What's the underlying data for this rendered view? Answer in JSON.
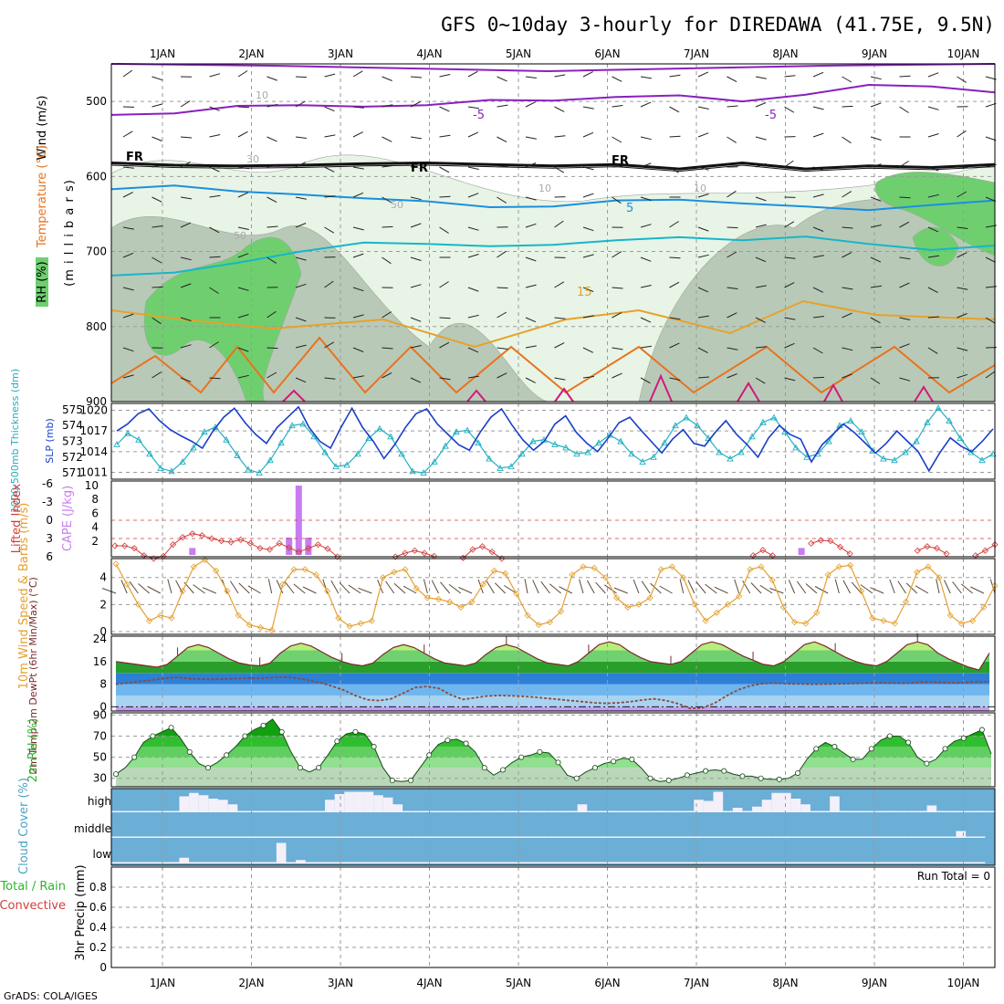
{
  "title": "GFS 0~10day 3-hourly for DIREDAWA (41.75E, 9.5N)",
  "footer": "GrADS: COLA/IGES",
  "day_labels": [
    "1JAN",
    "2JAN",
    "3JAN",
    "4JAN",
    "5JAN",
    "6JAN",
    "7JAN",
    "8JAN",
    "9JAN",
    "10JAN"
  ],
  "colors": {
    "rh_light": "#e8f4e6",
    "rh_mid": "#b9c9b8",
    "rh_dark": "#6fcf6f",
    "temp_purple": "#8a1fbf",
    "temp_blue": "#1a8fe0",
    "temp_cyan": "#16b6c8",
    "temp_orange": "#e6a22a",
    "temp_dorange": "#e8731c",
    "temp_magenta": "#d11a7a",
    "thickness": "#22b0c0",
    "slp": "#1a3fc8",
    "lifted": "#d43c3c",
    "cape": "#c77df0",
    "wind10": "#e4a030",
    "cloud": "#6baed6",
    "rh2m": "#2db52d"
  },
  "chart_data": [
    {
      "type": "contour",
      "panel": "upper-air",
      "ylabel": "(m i l l i b a r s)",
      "legend_labels": [
        "Wind (m/s)",
        "Temperature (°C)",
        "RH (%)"
      ],
      "ylim": [
        900,
        450
      ],
      "yticks": [
        500,
        600,
        700,
        800,
        900
      ],
      "contour_labels": {
        "freezing": [
          "FR",
          "FR",
          "FR"
        ],
        "temp": [
          "-5",
          "-5",
          "5",
          "15"
        ],
        "rh": [
          "10",
          "50",
          "50",
          "10",
          "10",
          "30"
        ]
      },
      "series_pressure": [
        {
          "name": "-5 °C",
          "values": [
            518,
            516,
            506,
            505,
            507,
            505,
            498,
            499,
            494,
            492,
            500,
            491,
            478,
            480,
            488
          ]
        },
        {
          "name": "FR",
          "values": [
            582,
            585,
            586,
            585,
            583,
            582,
            584,
            586,
            584,
            590,
            582,
            590,
            586,
            588,
            584
          ]
        },
        {
          "name": "5 °C",
          "values": [
            617,
            612,
            620,
            624,
            629,
            633,
            641,
            640,
            632,
            631,
            636,
            640,
            645,
            638,
            632
          ]
        },
        {
          "name": "15 °C",
          "values": [
            732,
            728,
            715,
            700,
            688,
            690,
            693,
            691,
            685,
            681,
            685,
            680,
            690,
            698,
            692
          ]
        }
      ]
    },
    {
      "type": "line",
      "panel": "thickness-slp",
      "ylabel_left": "1000-500mb Thickness (dm)",
      "ylabel_right": "SLP (mb)",
      "thickness_ticks": [
        575,
        574,
        573,
        572,
        571
      ],
      "slp_ticks": [
        1020,
        1017,
        1014,
        1011
      ],
      "thickness_ylim": [
        570.6,
        575.4
      ],
      "slp_ylim": [
        1010,
        1021
      ],
      "thickness": [
        572.8,
        573.5,
        573.1,
        572.2,
        571.3,
        571.1,
        571.7,
        572.6,
        573.6,
        573.9,
        573.1,
        572.1,
        571.2,
        571.0,
        571.8,
        572.9,
        574.0,
        574.1,
        573.3,
        572.3,
        571.4,
        571.5,
        572.2,
        573.2,
        573.8,
        573.3,
        572.2,
        571.1,
        571.0,
        571.7,
        572.7,
        573.6,
        573.7,
        572.9,
        571.9,
        571.3,
        571.4,
        572.2,
        573.0,
        573.1,
        572.8,
        572.6,
        572.2,
        572.3,
        572.9,
        573.4,
        573.0,
        572.2,
        571.7,
        572.0,
        572.9,
        574.0,
        574.5,
        574.0,
        573.2,
        572.3,
        571.9,
        572.3,
        573.3,
        574.2,
        574.5,
        573.6,
        572.6,
        572.0,
        572.2,
        573.0,
        574.0,
        574.3,
        573.6,
        572.4,
        571.9,
        571.8,
        572.3,
        573.0,
        574.2,
        575.1,
        574.3,
        573.2,
        572.3,
        571.8,
        572.2
      ],
      "slp": [
        1017.0,
        1018.0,
        1019.5,
        1020.2,
        1018.5,
        1017.2,
        1016.3,
        1015.5,
        1014.5,
        1017.0,
        1019.0,
        1020.3,
        1018.2,
        1016.5,
        1015.2,
        1017.5,
        1019.0,
        1020.5,
        1017.5,
        1015.5,
        1014.5,
        1017.6,
        1020.3,
        1017.5,
        1015.5,
        1013.0,
        1015.0,
        1017.5,
        1019.5,
        1020.2,
        1018.0,
        1016.5,
        1015.0,
        1014.2,
        1016.8,
        1019.0,
        1020.2,
        1017.8,
        1015.7,
        1014.2,
        1015.5,
        1018.0,
        1019.2,
        1016.8,
        1015.2,
        1014.0,
        1016.0,
        1018.2,
        1019.0,
        1017.2,
        1015.5,
        1013.8,
        1015.8,
        1017.2,
        1015.2,
        1014.8,
        1016.8,
        1018.5,
        1016.5,
        1015.0,
        1013.2,
        1016.0,
        1017.8,
        1016.5,
        1015.8,
        1012.5,
        1015.0,
        1016.5,
        1018.0,
        1016.8,
        1015.3,
        1013.8,
        1015.2,
        1017.0,
        1015.5,
        1014.0,
        1011.2,
        1013.8,
        1016.0,
        1014.8,
        1014.0,
        1015.5,
        1017.3
      ]
    },
    {
      "type": "line+bar",
      "panel": "lifted-cape",
      "ylabel_left": "Lifted Index",
      "ylabel_right": "CAPE (J/kg)",
      "lifted_ticks": [
        -6,
        -3,
        0,
        3,
        6
      ],
      "cape_ticks": [
        10,
        8,
        6,
        4,
        2
      ],
      "lifted_ylim": [
        6,
        -6
      ],
      "lifted_index": [
        4.2,
        4.2,
        4.6,
        5.8,
        6.3,
        5.9,
        4.0,
        2.8,
        2.2,
        2.5,
        3.0,
        3.4,
        3.6,
        3.2,
        3.8,
        4.6,
        4.8,
        3.8,
        4.5,
        5.2,
        4.6,
        4.0,
        4.7,
        6.0,
        null,
        null,
        null,
        null,
        null,
        6.0,
        5.4,
        5.0,
        5.4,
        5.9,
        null,
        null,
        6.2,
        4.8,
        4.3,
        5.2,
        6.3,
        null,
        null,
        null,
        null,
        null,
        null,
        null,
        null,
        null,
        null,
        null,
        null,
        null,
        null,
        null,
        null,
        null,
        null,
        null,
        null,
        null,
        null,
        null,
        null,
        null,
        5.8,
        4.9,
        5.8,
        null,
        null,
        null,
        3.8,
        3.3,
        3.4,
        4.4,
        5.5,
        null,
        null,
        null,
        null,
        null,
        null,
        5.0,
        4.3,
        4.6,
        5.5,
        null,
        null,
        5.8,
        5.0,
        4.0
      ],
      "cape_bars": [
        {
          "x": 8,
          "value": 1
        },
        {
          "x": 18,
          "value": 2.5
        },
        {
          "x": 19,
          "value": 10
        },
        {
          "x": 20,
          "value": 2.5
        },
        {
          "x": 71,
          "value": 1
        }
      ]
    },
    {
      "type": "line",
      "panel": "wind10m",
      "ylabel": "10m Wind Speed & Barbs (m/s)",
      "yticks": [
        0,
        2,
        4
      ],
      "ylim": [
        0,
        5.4
      ],
      "values": [
        5.0,
        3.5,
        2.0,
        0.8,
        1.2,
        1.0,
        3.0,
        4.8,
        5.3,
        4.5,
        3.0,
        1.2,
        0.5,
        0.3,
        0.1,
        3.5,
        4.6,
        4.6,
        4.2,
        3.0,
        1.0,
        0.4,
        0.6,
        0.8,
        4.0,
        4.4,
        4.6,
        3.2,
        2.5,
        2.4,
        2.2,
        1.8,
        2.2,
        3.5,
        4.5,
        4.3,
        2.8,
        1.2,
        0.5,
        0.7,
        1.5,
        4.2,
        4.8,
        4.7,
        4.0,
        2.5,
        1.8,
        2.0,
        2.5,
        4.6,
        4.8,
        4.0,
        2.0,
        0.8,
        1.4,
        2.0,
        2.6,
        4.6,
        4.8,
        3.8,
        1.8,
        0.7,
        0.6,
        1.4,
        4.2,
        4.8,
        4.9,
        3.0,
        1.0,
        0.8,
        0.6,
        2.2,
        4.4,
        4.8,
        4.0,
        1.2,
        0.6,
        0.8,
        1.8,
        3.4
      ]
    },
    {
      "type": "area",
      "panel": "temp2m",
      "ylabel": "2m Temp 2m DewPt (6hr Min/Max) (°C)",
      "yticks": [
        0,
        8,
        16,
        24
      ],
      "ylim": [
        -1.5,
        25
      ],
      "temperature": [
        16,
        15.5,
        15,
        14.5,
        14,
        15,
        18,
        21,
        22,
        21,
        19,
        17,
        15.5,
        14.8,
        14.5,
        15.5,
        19,
        21.5,
        22.5,
        21.5,
        19.5,
        17.5,
        16,
        15,
        14.5,
        15.5,
        18.5,
        21,
        22,
        21,
        19,
        17,
        15.5,
        15,
        14.5,
        15.5,
        18.5,
        21,
        22,
        21,
        19,
        17,
        15.5,
        15,
        14.5,
        16,
        19,
        22,
        23,
        22,
        19.5,
        17.5,
        16,
        15.5,
        15,
        16,
        19,
        22,
        23,
        22,
        20,
        18,
        16.5,
        15,
        14.5,
        16,
        19,
        22,
        23,
        21.5,
        19.5,
        17.5,
        16,
        15,
        14.5,
        16,
        19,
        22,
        23,
        22,
        19,
        17,
        15.5,
        14,
        13,
        19
      ],
      "dewpoint": [
        8,
        8.5,
        9,
        9.5,
        10,
        10.5,
        10,
        9.8,
        9.7,
        9.8,
        10,
        10.2,
        10,
        10.3,
        10.6,
        10.2,
        9.5,
        8.6,
        7.4,
        6,
        4,
        2.5,
        2.2,
        2.8,
        4.8,
        6.8,
        7.2,
        6.5,
        4.2,
        2.6,
        3.2,
        3.8,
        4,
        3.9,
        3.7,
        3.4,
        3,
        2.6,
        2.2,
        1.8,
        1.4,
        1.2,
        1.4,
        1.8,
        2.4,
        2.8,
        2.2,
        1.1,
        -0.6,
        -0.4,
        1.2,
        3.8,
        6,
        7.4,
        8.2,
        8.4,
        8.2,
        8.1,
        8.0,
        8.0,
        8.1,
        8.2,
        8.3,
        8.4,
        8.5,
        8.4,
        8.3,
        8.6,
        8.8,
        8.6,
        8.5,
        8.6,
        8.8,
        9
      ]
    },
    {
      "type": "area",
      "panel": "rh2m",
      "ylabel": "2m RH (%)",
      "yticks": [
        30,
        50,
        70,
        90
      ],
      "ylim": [
        22,
        92
      ],
      "values": [
        34,
        40,
        50,
        64,
        70,
        74,
        78,
        68,
        55,
        44,
        40,
        45,
        52,
        60,
        70,
        76,
        80,
        86,
        74,
        55,
        40,
        36,
        40,
        52,
        65,
        72,
        74,
        72,
        60,
        40,
        28,
        27,
        28,
        40,
        52,
        62,
        66,
        67,
        63,
        55,
        40,
        33,
        38,
        45,
        50,
        52,
        55,
        54,
        45,
        33,
        30,
        36,
        40,
        44,
        46,
        49,
        48,
        40,
        30,
        27,
        28,
        30,
        33,
        35,
        37,
        38,
        37,
        34,
        32,
        32,
        30,
        29,
        29,
        30,
        35,
        48,
        58,
        64,
        60,
        54,
        48,
        48,
        58,
        66,
        70,
        70,
        64,
        50,
        44,
        48,
        58,
        65,
        68,
        72,
        76,
        53
      ]
    },
    {
      "type": "heatmap",
      "panel": "cloud",
      "ylabel": "Cloud Cover (%)",
      "level_labels": [
        "high",
        "middle",
        "low"
      ],
      "high": [
        0,
        0,
        0,
        0,
        0,
        0,
        0,
        0.7,
        0.85,
        0.75,
        0.6,
        0.55,
        0.35,
        0,
        0,
        0,
        0,
        0,
        0,
        0,
        0,
        0,
        0.55,
        0.8,
        0.9,
        0.9,
        0.9,
        0.75,
        0.65,
        0.35,
        0,
        0,
        0,
        0,
        0,
        0,
        0,
        0,
        0,
        0,
        0,
        0,
        0,
        0,
        0,
        0,
        0,
        0,
        0.35,
        0,
        0,
        0,
        0,
        0,
        0,
        0,
        0,
        0,
        0,
        0,
        0.55,
        0.5,
        0.9,
        0,
        0.2,
        0,
        0.25,
        0.55,
        0.85,
        0.85,
        0.6,
        0.35,
        0,
        0,
        0.7,
        0,
        0,
        0,
        0,
        0,
        0,
        0,
        0,
        0,
        0.3,
        0,
        0,
        0,
        0,
        0,
        0
      ],
      "middle": [
        0,
        0,
        0,
        0,
        0,
        0,
        0,
        0,
        0,
        0,
        0,
        0,
        0,
        0,
        0,
        0,
        0,
        0,
        0,
        0,
        0,
        0,
        0,
        0,
        0,
        0,
        0,
        0,
        0,
        0,
        0,
        0,
        0,
        0,
        0,
        0,
        0,
        0,
        0,
        0,
        0,
        0,
        0,
        0,
        0,
        0,
        0,
        0,
        0,
        0,
        0,
        0,
        0,
        0,
        0,
        0,
        0,
        0,
        0,
        0,
        0,
        0,
        0,
        0,
        0,
        0,
        0,
        0,
        0,
        0,
        0,
        0,
        0,
        0,
        0,
        0,
        0,
        0,
        0,
        0,
        0,
        0,
        0,
        0,
        0,
        0,
        0,
        0.3,
        0,
        0
      ],
      "low": [
        0,
        0,
        0,
        0,
        0,
        0,
        0,
        0.25,
        0,
        0,
        0,
        0,
        0,
        0,
        0,
        0,
        0,
        0.9,
        0,
        0.15,
        0,
        0,
        0,
        0,
        0,
        0,
        0,
        0,
        0,
        0,
        0,
        0,
        0,
        0,
        0,
        0,
        0,
        0,
        0,
        0,
        0,
        0,
        0,
        0,
        0,
        0,
        0,
        0,
        0,
        0,
        0,
        0,
        0,
        0,
        0,
        0,
        0,
        0,
        0,
        0,
        0,
        0,
        0,
        0,
        0,
        0,
        0,
        0,
        0,
        0,
        0,
        0,
        0,
        0,
        0,
        0,
        0,
        0,
        0,
        0,
        0,
        0,
        0,
        0,
        0,
        0,
        0,
        0,
        0,
        0
      ]
    },
    {
      "type": "bar",
      "panel": "precip",
      "ylabel": "3hr Precip (mm)",
      "legend_labels": [
        "Total / Rain",
        "Convective"
      ],
      "yticks": [
        0,
        0.2,
        0.4,
        0.6,
        0.8
      ],
      "ylim": [
        0,
        1
      ],
      "annotation": "Run Total = 0",
      "values": []
    }
  ]
}
